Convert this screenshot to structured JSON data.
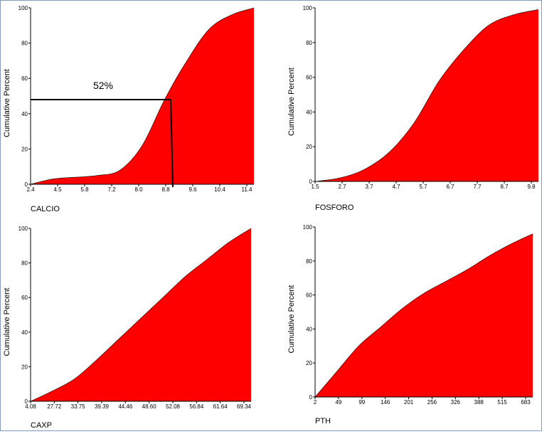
{
  "chart_data": [
    {
      "type": "area",
      "xlabel": "CALCIO",
      "ylabel": "Cumulative Percent",
      "ylim": [
        0,
        100
      ],
      "yticks": [
        0,
        20,
        40,
        60,
        80,
        100
      ],
      "xticks": [
        "2.4",
        "4.5",
        "5.8",
        "7.2",
        "8.0",
        "8.8",
        "9.6",
        "10.4",
        "11.4"
      ],
      "fill_color": "#ff0000",
      "annotation": {
        "label": "52%",
        "x_value": "9.0",
        "y_value": 48
      },
      "x": [
        0,
        1,
        2,
        3,
        4,
        5,
        6,
        7,
        8,
        9,
        10
      ],
      "values": [
        0,
        3,
        4,
        5,
        8,
        22,
        48,
        70,
        88,
        96,
        100
      ]
    },
    {
      "type": "area",
      "xlabel": "FOSFORO",
      "ylabel": "Cumulative Percent",
      "ylim": [
        0,
        100
      ],
      "yticks": [
        0,
        20,
        40,
        60,
        80,
        100
      ],
      "xticks": [
        "1.5",
        "2.7",
        "3.7",
        "4.7",
        "5.7",
        "6.7",
        "7.7",
        "8.7",
        "9.8"
      ],
      "fill_color": "#ff0000",
      "x": [
        0,
        1,
        2,
        3,
        4,
        5,
        6,
        7,
        8,
        9
      ],
      "values": [
        0,
        2,
        7,
        17,
        34,
        58,
        76,
        90,
        96,
        99
      ]
    },
    {
      "type": "area",
      "xlabel": "CAXP",
      "ylabel": "Cumulative Percent",
      "ylim": [
        0,
        100
      ],
      "yticks": [
        0,
        20,
        40,
        60,
        80,
        100
      ],
      "xticks": [
        "4.08",
        "27.72",
        "33.75",
        "39.39",
        "44.46",
        "48.60",
        "52.08",
        "56.84",
        "61.64",
        "69.34"
      ],
      "fill_color": "#ff0000",
      "x": [
        0,
        1,
        2,
        3,
        4,
        5,
        6,
        7,
        8,
        9,
        10
      ],
      "values": [
        0,
        6,
        13,
        24,
        36,
        48,
        60,
        72,
        82,
        92,
        100
      ]
    },
    {
      "type": "area",
      "xlabel": "PTH",
      "ylabel": "Cumulative Percent",
      "ylim": [
        0,
        100
      ],
      "yticks": [
        0,
        20,
        40,
        60,
        80,
        100
      ],
      "xticks": [
        "2",
        "49",
        "99",
        "146",
        "201",
        "256",
        "326",
        "388",
        "515",
        "683"
      ],
      "fill_color": "#ff0000",
      "x": [
        0,
        1,
        2,
        3,
        4,
        5,
        6,
        7,
        8,
        9,
        10
      ],
      "values": [
        0,
        15,
        30,
        41,
        52,
        61,
        68,
        75,
        83,
        90,
        96
      ]
    }
  ]
}
